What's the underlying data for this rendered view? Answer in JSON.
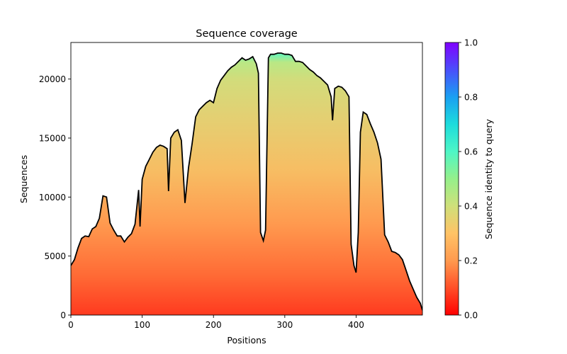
{
  "chart_data": {
    "type": "heatmap",
    "title": "Sequence coverage",
    "xlabel": "Positions",
    "ylabel": "Sequences",
    "xlim": [
      0,
      493
    ],
    "ylim": [
      0,
      23100
    ],
    "x_ticks": [
      0,
      100,
      200,
      300,
      400
    ],
    "y_ticks": [
      0,
      5000,
      10000,
      15000,
      20000
    ],
    "colorbar": {
      "label": "Sequence identity to query",
      "range": [
        0.0,
        1.0
      ],
      "ticks": [
        "0.0",
        "0.2",
        "0.4",
        "0.6",
        "0.8",
        "1.0"
      ],
      "colormap": "rainbow_r"
    },
    "coverage_line": {
      "color": "#000000",
      "points": [
        [
          0,
          4200
        ],
        [
          5,
          4700
        ],
        [
          10,
          5700
        ],
        [
          15,
          6500
        ],
        [
          20,
          6700
        ],
        [
          25,
          6650
        ],
        [
          30,
          7300
        ],
        [
          35,
          7500
        ],
        [
          40,
          8200
        ],
        [
          45,
          10100
        ],
        [
          50,
          10000
        ],
        [
          55,
          7800
        ],
        [
          60,
          7200
        ],
        [
          65,
          6700
        ],
        [
          70,
          6700
        ],
        [
          75,
          6200
        ],
        [
          80,
          6600
        ],
        [
          85,
          6900
        ],
        [
          90,
          7700
        ],
        [
          95,
          10600
        ],
        [
          97,
          7500
        ],
        [
          100,
          11500
        ],
        [
          105,
          12600
        ],
        [
          110,
          13200
        ],
        [
          115,
          13800
        ],
        [
          120,
          14200
        ],
        [
          125,
          14400
        ],
        [
          130,
          14300
        ],
        [
          135,
          14100
        ],
        [
          137,
          10500
        ],
        [
          140,
          15000
        ],
        [
          145,
          15500
        ],
        [
          150,
          15700
        ],
        [
          155,
          14800
        ],
        [
          160,
          9500
        ],
        [
          165,
          12500
        ],
        [
          170,
          14500
        ],
        [
          175,
          16800
        ],
        [
          180,
          17400
        ],
        [
          185,
          17700
        ],
        [
          190,
          18000
        ],
        [
          195,
          18200
        ],
        [
          200,
          18000
        ],
        [
          205,
          19200
        ],
        [
          210,
          19900
        ],
        [
          215,
          20300
        ],
        [
          220,
          20700
        ],
        [
          225,
          21000
        ],
        [
          230,
          21200
        ],
        [
          235,
          21500
        ],
        [
          240,
          21800
        ],
        [
          245,
          21600
        ],
        [
          250,
          21700
        ],
        [
          255,
          21900
        ],
        [
          260,
          21300
        ],
        [
          263,
          20500
        ],
        [
          266,
          7000
        ],
        [
          270,
          6300
        ],
        [
          273,
          7200
        ],
        [
          277,
          21800
        ],
        [
          280,
          22100
        ],
        [
          285,
          22100
        ],
        [
          290,
          22200
        ],
        [
          295,
          22200
        ],
        [
          300,
          22100
        ],
        [
          305,
          22100
        ],
        [
          310,
          22000
        ],
        [
          315,
          21500
        ],
        [
          320,
          21500
        ],
        [
          325,
          21400
        ],
        [
          330,
          21100
        ],
        [
          335,
          20800
        ],
        [
          340,
          20600
        ],
        [
          345,
          20300
        ],
        [
          350,
          20100
        ],
        [
          355,
          19800
        ],
        [
          360,
          19500
        ],
        [
          365,
          18500
        ],
        [
          367,
          16500
        ],
        [
          370,
          19200
        ],
        [
          375,
          19400
        ],
        [
          380,
          19300
        ],
        [
          385,
          19000
        ],
        [
          390,
          18500
        ],
        [
          393,
          6000
        ],
        [
          397,
          4200
        ],
        [
          400,
          3600
        ],
        [
          403,
          7000
        ],
        [
          406,
          15500
        ],
        [
          410,
          17200
        ],
        [
          415,
          17000
        ],
        [
          420,
          16200
        ],
        [
          425,
          15500
        ],
        [
          430,
          14600
        ],
        [
          435,
          13200
        ],
        [
          440,
          6800
        ],
        [
          445,
          6200
        ],
        [
          450,
          5400
        ],
        [
          455,
          5300
        ],
        [
          460,
          5100
        ],
        [
          465,
          4700
        ],
        [
          470,
          3800
        ],
        [
          475,
          2900
        ],
        [
          480,
          2200
        ],
        [
          485,
          1500
        ],
        [
          490,
          1000
        ],
        [
          493,
          400
        ]
      ]
    }
  }
}
